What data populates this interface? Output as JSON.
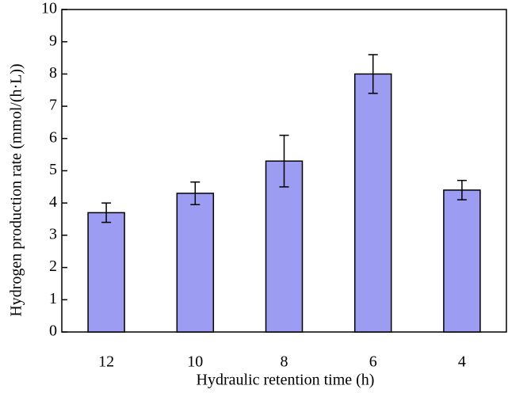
{
  "chart_data": {
    "type": "bar",
    "x_label": "Hydraulic retention time (h)",
    "y_label": "Hydrogen production rate (mmol/(h·L))",
    "categories": [
      "12",
      "10",
      "8",
      "6",
      "4"
    ],
    "values": [
      3.7,
      4.3,
      5.3,
      8.0,
      4.4
    ],
    "errors": [
      0.3,
      0.35,
      0.8,
      0.6,
      0.3
    ],
    "color": "#9c9cf2",
    "ylim": [
      0,
      10
    ],
    "yticks": [
      0,
      1,
      2,
      3,
      4,
      5,
      6,
      7,
      8,
      9,
      10
    ]
  }
}
